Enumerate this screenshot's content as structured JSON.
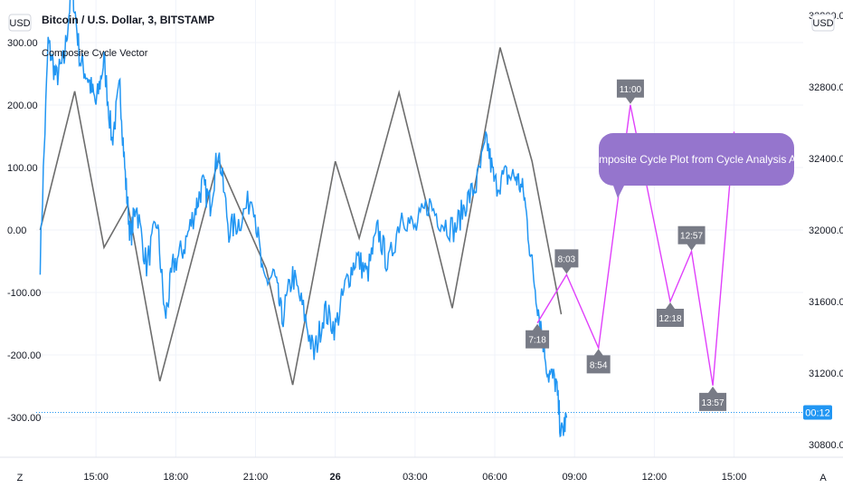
{
  "header": {
    "title": "Bitcoin / U.S. Dollar, 3, BITSTAMP",
    "indicator": "Composite Cycle Vector"
  },
  "currency_left": "USD",
  "currency_right": "USD",
  "corner_left": "Z",
  "corner_right": "A",
  "callout": "Composite Cycle Plot from Cycle Analysis App",
  "price_label": "00:12",
  "colors": {
    "price": "#2196F3",
    "cycle": "#6d6d6d",
    "projection": "#E040FB",
    "pin": "#787B86",
    "callout": "#9575CD",
    "grid": "#f0f3fa",
    "price_line": "#2196F3"
  },
  "chart_data": {
    "type": "line",
    "left_axis": {
      "range": [
        -330,
        360
      ],
      "ticks": [
        "300.00",
        "200.00",
        "100.00",
        "0.00",
        "-100.00",
        "-200.00",
        "-300.00"
      ],
      "values": [
        300,
        200,
        100,
        0,
        -100,
        -200,
        -300
      ]
    },
    "right_axis": {
      "range": [
        30660,
        33580
      ],
      "ticks": [
        "33200.00",
        "32800.00",
        "32400.00",
        "32000.00",
        "31600.00",
        "31200.00",
        "30800.00"
      ],
      "values": [
        33200,
        32800,
        32400,
        32000,
        31600,
        31200,
        30800
      ]
    },
    "x_axis": {
      "range_hours": [
        13.0,
        17.9
      ],
      "ticks": [
        {
          "label": "15:00",
          "h": 15.0,
          "bold": false
        },
        {
          "label": "18:00",
          "h": 18.0,
          "bold": false
        },
        {
          "label": "21:00",
          "h": 21.0,
          "bold": false
        },
        {
          "label": "26",
          "h": 24.0,
          "bold": true
        },
        {
          "label": "03:00",
          "h": 27.0,
          "bold": false
        },
        {
          "label": "06:00",
          "h": 30.0,
          "bold": false
        },
        {
          "label": "09:00",
          "h": 33.0,
          "bold": false
        },
        {
          "label": "12:00",
          "h": 36.0,
          "bold": false
        },
        {
          "label": "15:00",
          "h": 39.0,
          "bold": false
        }
      ]
    },
    "x_axis_hours": {
      "min": 12.75,
      "max": 41.6
    },
    "cycle_vector": {
      "name": "Composite Cycle Vector",
      "points": [
        [
          12.9,
          0
        ],
        [
          14.2,
          222
        ],
        [
          15.3,
          -28
        ],
        [
          16.2,
          40
        ],
        [
          17.4,
          -242
        ],
        [
          19.6,
          112
        ],
        [
          21.4,
          -62
        ],
        [
          22.4,
          -248
        ],
        [
          24.0,
          110
        ],
        [
          24.9,
          -13
        ],
        [
          26.4,
          220
        ],
        [
          28.4,
          -125
        ],
        [
          29.0,
          12
        ],
        [
          30.2,
          292
        ],
        [
          31.4,
          110
        ],
        [
          32.5,
          -135
        ]
      ]
    },
    "price_series": {
      "anchors": [
        [
          12.9,
          31830
        ],
        [
          13.2,
          33050
        ],
        [
          13.5,
          32850
        ],
        [
          13.8,
          32950
        ],
        [
          14.1,
          33380
        ],
        [
          14.4,
          32950
        ],
        [
          14.7,
          32850
        ],
        [
          15.0,
          32700
        ],
        [
          15.3,
          32950
        ],
        [
          15.6,
          32500
        ],
        [
          15.9,
          32800
        ],
        [
          16.1,
          32300
        ],
        [
          16.3,
          31950
        ],
        [
          16.5,
          32150
        ],
        [
          16.9,
          31800
        ],
        [
          17.3,
          32050
        ],
        [
          17.6,
          31500
        ],
        [
          17.9,
          31800
        ],
        [
          18.3,
          31900
        ],
        [
          18.7,
          32100
        ],
        [
          19.0,
          32250
        ],
        [
          19.3,
          32150
        ],
        [
          19.6,
          32450
        ],
        [
          20.0,
          32000
        ],
        [
          20.4,
          32050
        ],
        [
          20.9,
          32200
        ],
        [
          21.3,
          31700
        ],
        [
          21.7,
          31750
        ],
        [
          22.0,
          31500
        ],
        [
          22.4,
          31750
        ],
        [
          22.8,
          31550
        ],
        [
          23.2,
          31300
        ],
        [
          23.6,
          31550
        ],
        [
          24.0,
          31450
        ],
        [
          24.4,
          31700
        ],
        [
          24.8,
          31850
        ],
        [
          25.2,
          31750
        ],
        [
          25.6,
          32000
        ],
        [
          26.0,
          31800
        ],
        [
          26.5,
          32100
        ],
        [
          27.0,
          32000
        ],
        [
          27.5,
          32150
        ],
        [
          28.0,
          32050
        ],
        [
          28.5,
          32000
        ],
        [
          28.9,
          32150
        ],
        [
          29.3,
          32250
        ],
        [
          29.7,
          32500
        ],
        [
          30.0,
          32250
        ],
        [
          30.4,
          32300
        ],
        [
          30.8,
          32300
        ],
        [
          31.1,
          32200
        ],
        [
          31.4,
          31800
        ],
        [
          31.7,
          31500
        ],
        [
          32.0,
          31200
        ],
        [
          32.3,
          31150
        ],
        [
          32.5,
          30850
        ],
        [
          32.7,
          30950
        ]
      ]
    },
    "projection": {
      "points": [
        [
          31.6,
          31480
        ],
        [
          32.7,
          31750
        ],
        [
          33.9,
          31340
        ],
        [
          35.1,
          32700
        ],
        [
          36.6,
          31600
        ],
        [
          37.4,
          31880
        ],
        [
          38.2,
          31130
        ],
        [
          39.0,
          32550
        ]
      ]
    },
    "pins": [
      {
        "label": "7:18",
        "h": 31.6,
        "price": 31480,
        "dir": "below"
      },
      {
        "label": "8:03",
        "h": 32.7,
        "price": 31750,
        "dir": "above"
      },
      {
        "label": "8:54",
        "h": 33.9,
        "price": 31340,
        "dir": "below"
      },
      {
        "label": "11:00",
        "h": 35.1,
        "price": 32700,
        "dir": "above"
      },
      {
        "label": "12:18",
        "h": 36.6,
        "price": 31600,
        "dir": "below"
      },
      {
        "label": "12:57",
        "h": 37.4,
        "price": 31880,
        "dir": "above"
      },
      {
        "label": "13:57",
        "h": 38.2,
        "price": 31130,
        "dir": "below"
      }
    ],
    "current_price": 30980
  }
}
